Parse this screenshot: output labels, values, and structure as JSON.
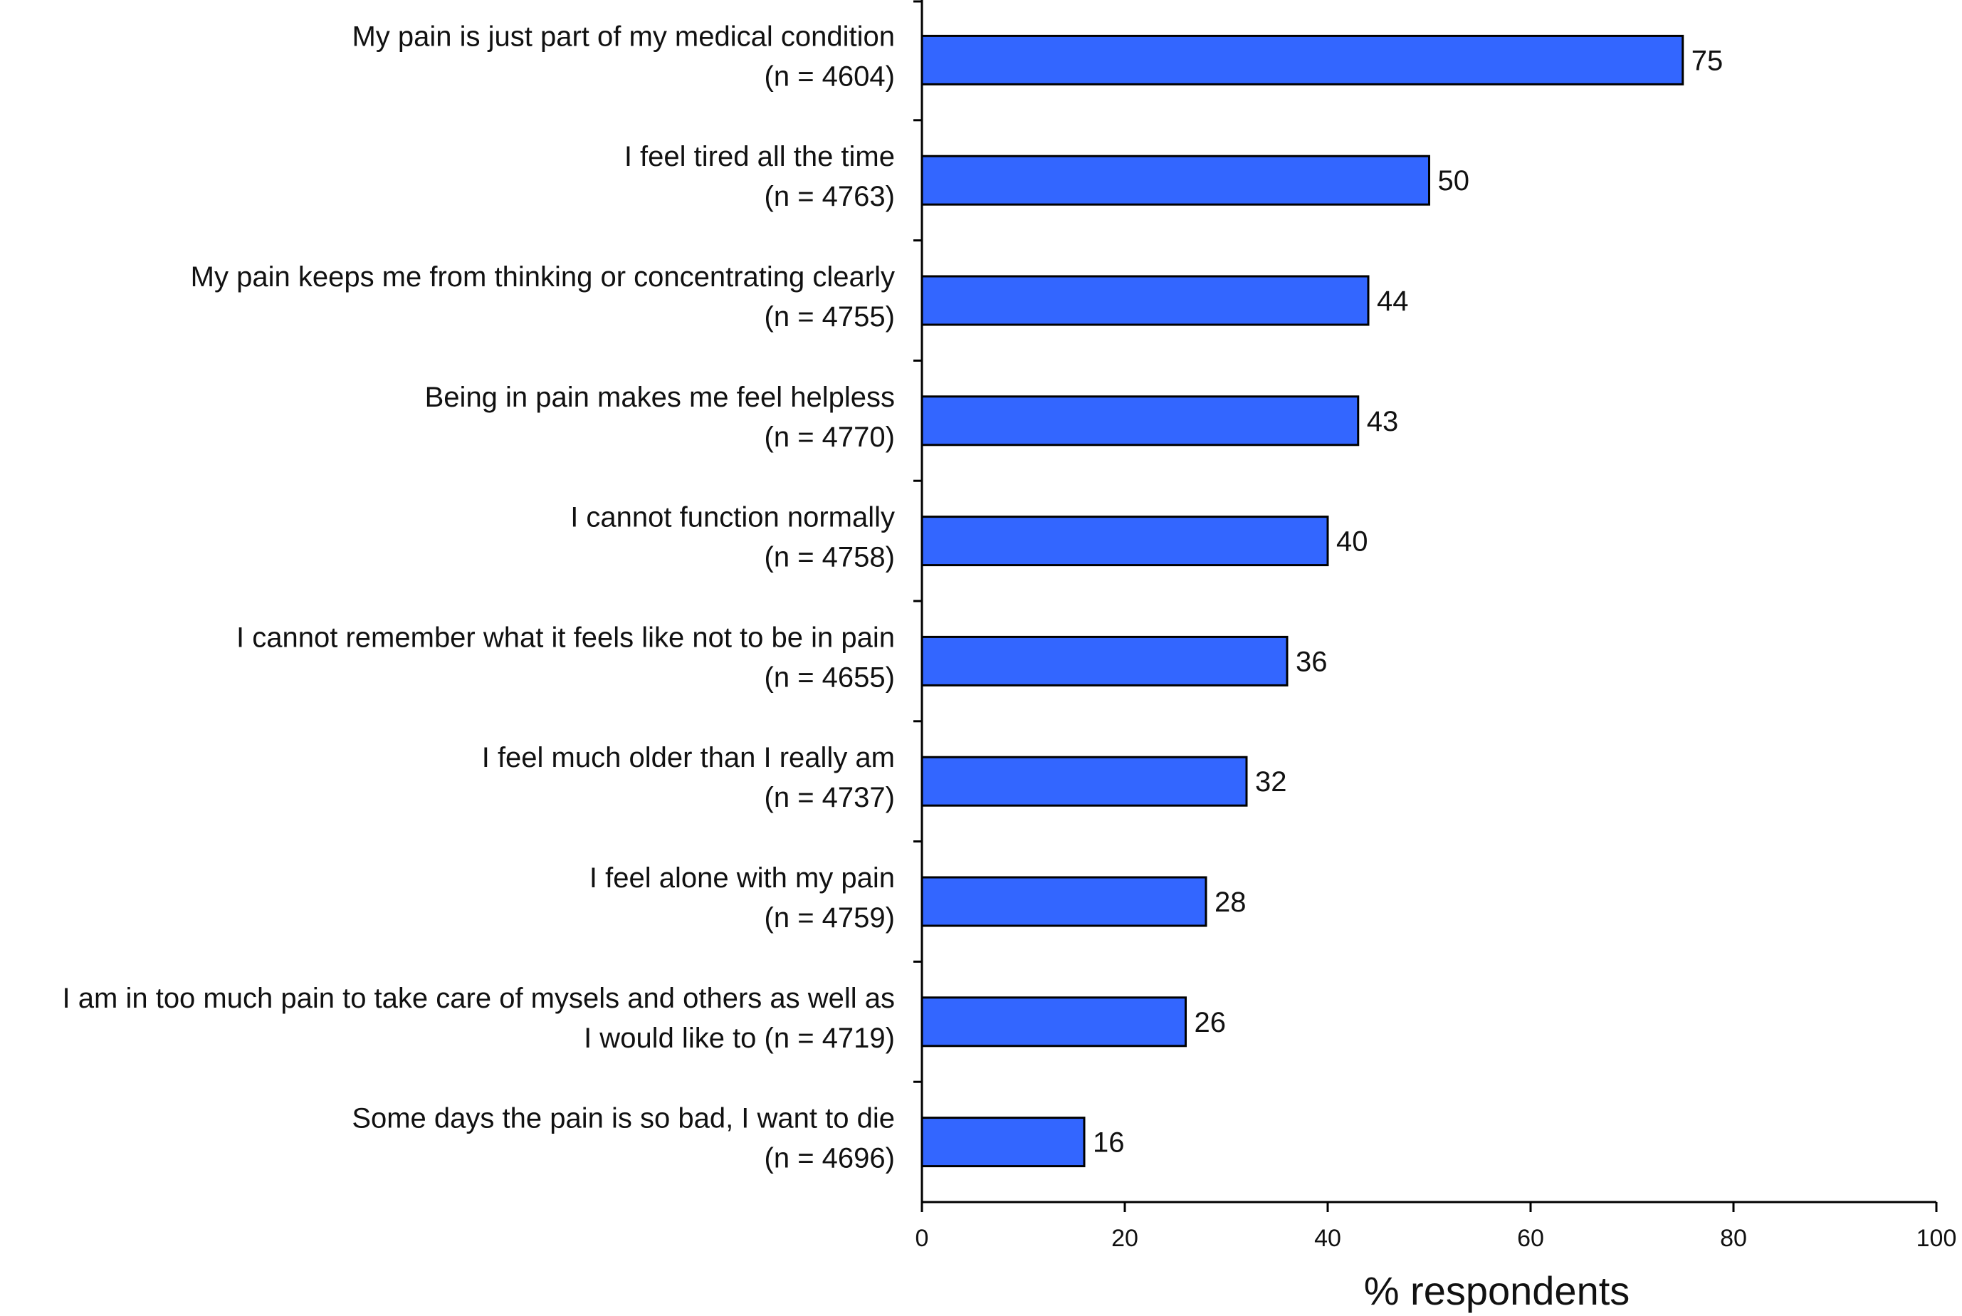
{
  "chart_data": {
    "type": "bar",
    "orientation": "horizontal",
    "categories": [
      [
        "My pain is just part of my medical condition",
        "(n = 4604)"
      ],
      [
        "I feel tired all the time",
        "(n = 4763)"
      ],
      [
        "My pain keeps me from thinking or concentrating clearly",
        "(n = 4755)"
      ],
      [
        "Being in pain makes me feel helpless",
        "(n = 4770)"
      ],
      [
        "I cannot function normally",
        "(n = 4758)"
      ],
      [
        "I cannot remember what it feels like not to be in pain",
        "(n = 4655)"
      ],
      [
        "I feel much older than I really am",
        "(n = 4737)"
      ],
      [
        "I feel alone with my pain",
        "(n = 4759)"
      ],
      [
        "I am in too much pain to take care of mysels and others as well as",
        "I would like to (n = 4719)"
      ],
      [
        "Some days the pain is so bad, I want to die",
        "(n = 4696)"
      ]
    ],
    "values": [
      75,
      50,
      44,
      43,
      40,
      36,
      32,
      28,
      26,
      16
    ],
    "xlim": [
      0,
      100
    ],
    "xticks": [
      "0",
      "20",
      "40",
      "60",
      "80",
      "100"
    ],
    "xlabel": "% respondents",
    "bar_color": "#3366ff",
    "grid": false
  }
}
